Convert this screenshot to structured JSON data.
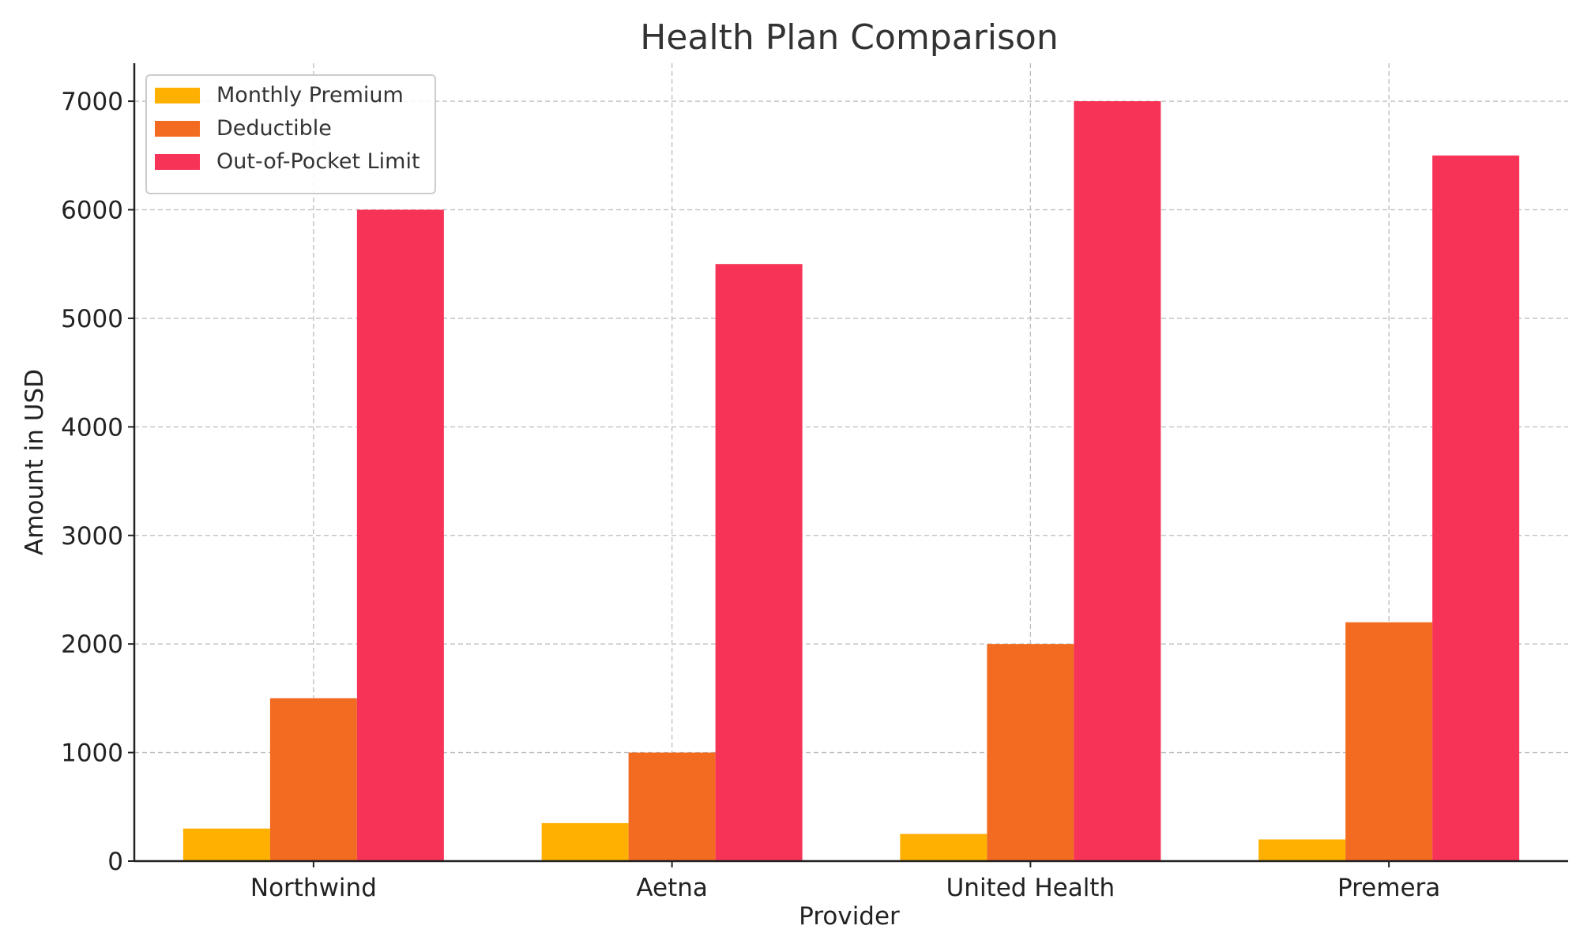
{
  "chart_data": {
    "type": "bar",
    "title": "Health Plan Comparison",
    "xlabel": "Provider",
    "ylabel": "Amount in USD",
    "categories": [
      "Northwind",
      "Aetna",
      "United Health",
      "Premera"
    ],
    "series": [
      {
        "name": "Monthly Premium",
        "color": "#FFB000",
        "values": [
          300,
          350,
          250,
          200
        ]
      },
      {
        "name": "Deductible",
        "color": "#F26B21",
        "values": [
          1500,
          1000,
          2000,
          2200
        ]
      },
      {
        "name": "Out-of-Pocket Limit",
        "color": "#F73357",
        "values": [
          6000,
          5500,
          7000,
          6500
        ]
      }
    ],
    "ylim": [
      0,
      7350
    ],
    "yticks": [
      0,
      1000,
      2000,
      3000,
      4000,
      5000,
      6000,
      7000
    ],
    "grid": true,
    "legend_position": "top-left"
  }
}
